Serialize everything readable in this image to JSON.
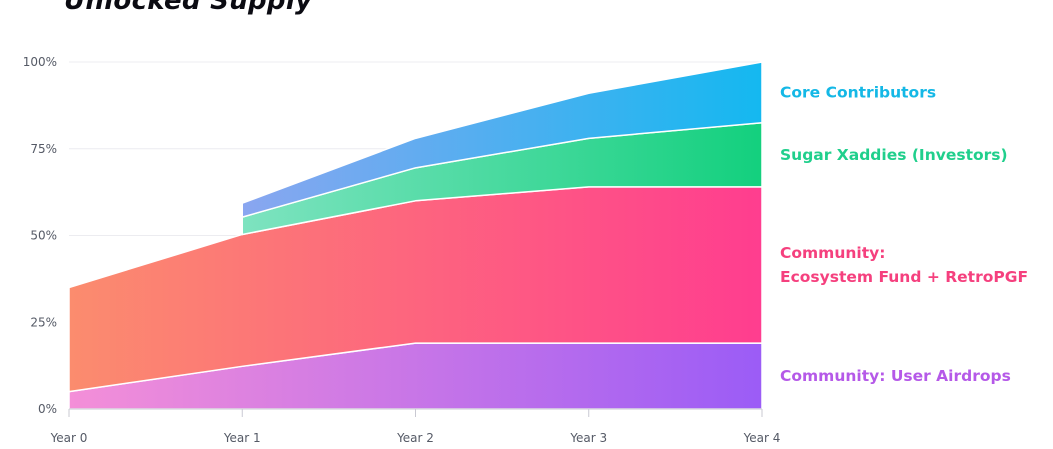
{
  "title": "Unlocked Supply",
  "chart_data": {
    "type": "area",
    "stacked": true,
    "title": "Unlocked Supply",
    "x": [
      "Year 0",
      "Year 1",
      "Year 2",
      "Year 3",
      "Year 4"
    ],
    "ylim": [
      0,
      100
    ],
    "yticks": [
      "0%",
      "25%",
      "50%",
      "75%",
      "100%"
    ],
    "grid": true,
    "legend_position": "right",
    "series": [
      {
        "name": "Community: User Airdrops",
        "color_start": "#f48fd8",
        "color_end": "#9b5cf6",
        "values": [
          5,
          12.3,
          19,
          19,
          19
        ]
      },
      {
        "name": "Community:\nEcosystem Fund + RetroPGF",
        "color_start": "#fb8c6e",
        "color_end": "#ff3d8f",
        "values": [
          30,
          38,
          41,
          45,
          45
        ]
      },
      {
        "name": "Sugar Xaddies (Investors)",
        "color_start": "#7ee3c0",
        "color_end": "#13d07e",
        "values": [
          null,
          5,
          9.5,
          14,
          18.5
        ]
      },
      {
        "name": "Core Contributors",
        "color_start": "#8aa6f0",
        "color_end": "#14b8f0",
        "values": [
          null,
          4,
          8.5,
          13,
          17.5
        ]
      }
    ],
    "series_start_index": [
      0,
      0,
      1,
      1
    ],
    "label_colors": [
      "#b559e8",
      "#f5407e",
      "#20cf8c",
      "#14b8e6"
    ]
  }
}
